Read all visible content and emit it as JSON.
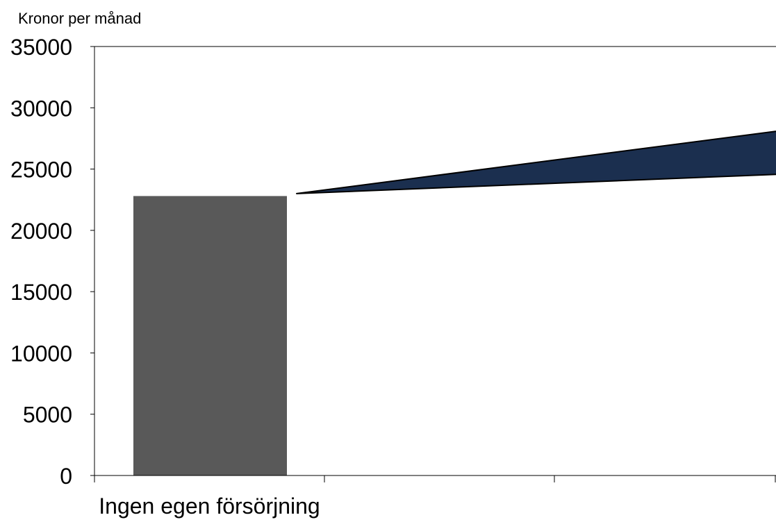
{
  "chart_data": {
    "type": "bar",
    "ylabel": "Kronor per månad",
    "ylim": [
      0,
      35000
    ],
    "yticks": [
      0,
      5000,
      10000,
      15000,
      20000,
      25000,
      30000,
      35000
    ],
    "categories": [
      "Ingen egen försörjning",
      "",
      ""
    ],
    "series": [
      {
        "values": [
          22800,
          null,
          null
        ]
      }
    ],
    "fan": {
      "start": {
        "x": 1.0,
        "y": 23000
      },
      "end_x": 2.95,
      "upper_end": 28200,
      "lower_end": 24600
    },
    "colors": {
      "bar": "#595959",
      "fan": "#1b2f4f",
      "axis": "#000000"
    },
    "grid": false
  }
}
